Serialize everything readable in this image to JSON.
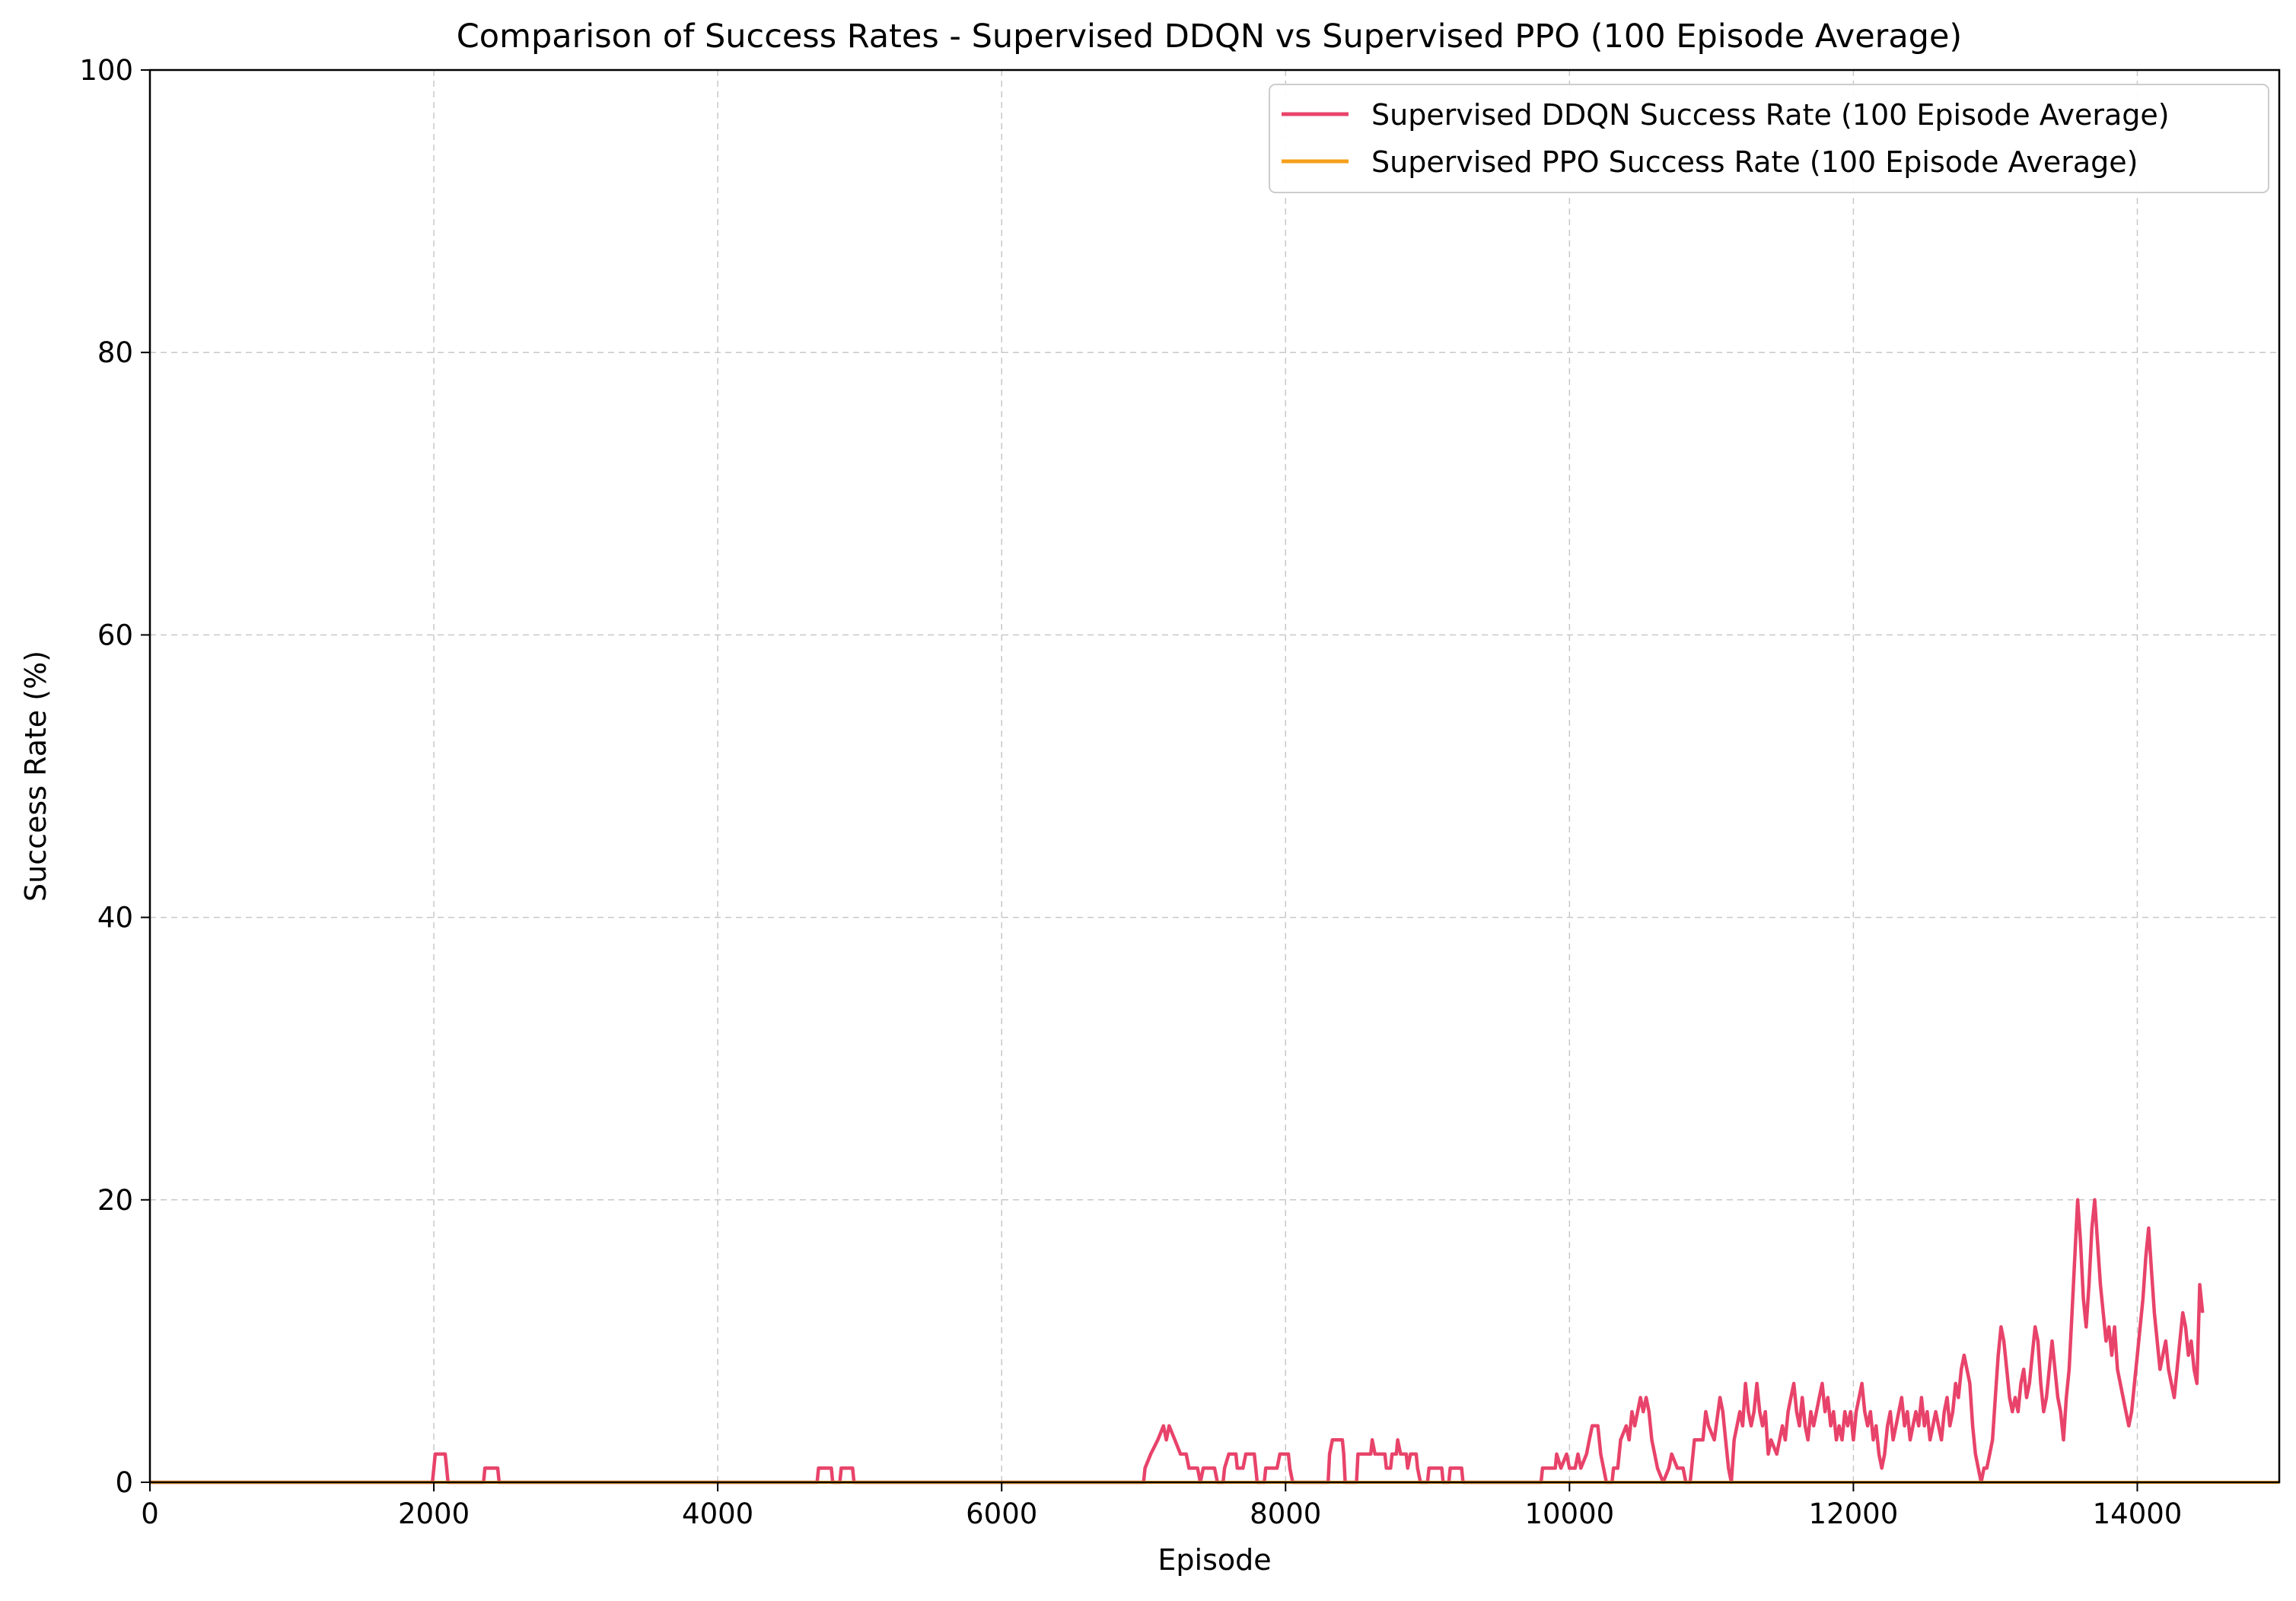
{
  "chart_data": {
    "type": "line",
    "title": "Comparison of Success Rates - Supervised DDQN vs Supervised PPO (100 Episode Average)",
    "xlabel": "Episode",
    "ylabel": "Success Rate (%)",
    "xlim": [
      0,
      15000
    ],
    "ylim": [
      0,
      100
    ],
    "x_ticks": [
      0,
      2000,
      4000,
      6000,
      8000,
      10000,
      12000,
      14000
    ],
    "y_ticks": [
      0,
      20,
      40,
      60,
      80,
      100
    ],
    "grid": true,
    "legend_position": "top-right",
    "series": [
      {
        "name": "Supervised DDQN Success Rate (100 Episode Average)",
        "color": "#e8436a",
        "points": [
          [
            0,
            0
          ],
          [
            1990,
            0
          ],
          [
            2000,
            1
          ],
          [
            2010,
            2
          ],
          [
            2080,
            2
          ],
          [
            2090,
            1
          ],
          [
            2100,
            0
          ],
          [
            2350,
            0
          ],
          [
            2360,
            1
          ],
          [
            2450,
            1
          ],
          [
            2460,
            0
          ],
          [
            4700,
            0
          ],
          [
            4710,
            1
          ],
          [
            4800,
            1
          ],
          [
            4810,
            0
          ],
          [
            4860,
            0
          ],
          [
            4870,
            1
          ],
          [
            4950,
            1
          ],
          [
            4960,
            0
          ],
          [
            7000,
            0
          ],
          [
            7010,
            1
          ],
          [
            7050,
            2
          ],
          [
            7100,
            3
          ],
          [
            7140,
            4
          ],
          [
            7160,
            3
          ],
          [
            7180,
            4
          ],
          [
            7220,
            3
          ],
          [
            7260,
            2
          ],
          [
            7300,
            2
          ],
          [
            7320,
            1
          ],
          [
            7380,
            1
          ],
          [
            7400,
            0
          ],
          [
            7420,
            1
          ],
          [
            7500,
            1
          ],
          [
            7520,
            0
          ],
          [
            7560,
            0
          ],
          [
            7570,
            1
          ],
          [
            7600,
            2
          ],
          [
            7650,
            2
          ],
          [
            7660,
            1
          ],
          [
            7700,
            1
          ],
          [
            7720,
            2
          ],
          [
            7780,
            2
          ],
          [
            7790,
            1
          ],
          [
            7800,
            0
          ],
          [
            7850,
            0
          ],
          [
            7860,
            1
          ],
          [
            7940,
            1
          ],
          [
            7960,
            2
          ],
          [
            8020,
            2
          ],
          [
            8030,
            1
          ],
          [
            8050,
            0
          ],
          [
            8300,
            0
          ],
          [
            8310,
            2
          ],
          [
            8330,
            3
          ],
          [
            8400,
            3
          ],
          [
            8410,
            2
          ],
          [
            8420,
            0
          ],
          [
            8500,
            0
          ],
          [
            8510,
            2
          ],
          [
            8600,
            2
          ],
          [
            8610,
            3
          ],
          [
            8630,
            2
          ],
          [
            8700,
            2
          ],
          [
            8710,
            1
          ],
          [
            8740,
            1
          ],
          [
            8750,
            2
          ],
          [
            8780,
            2
          ],
          [
            8790,
            3
          ],
          [
            8810,
            2
          ],
          [
            8850,
            2
          ],
          [
            8860,
            1
          ],
          [
            8880,
            2
          ],
          [
            8920,
            2
          ],
          [
            8930,
            1
          ],
          [
            8950,
            0
          ],
          [
            9000,
            0
          ],
          [
            9010,
            1
          ],
          [
            9100,
            1
          ],
          [
            9110,
            0
          ],
          [
            9150,
            0
          ],
          [
            9160,
            1
          ],
          [
            9240,
            1
          ],
          [
            9250,
            0
          ],
          [
            9800,
            0
          ],
          [
            9810,
            1
          ],
          [
            9900,
            1
          ],
          [
            9910,
            2
          ],
          [
            9940,
            1
          ],
          [
            9980,
            2
          ],
          [
            10000,
            1
          ],
          [
            10040,
            1
          ],
          [
            10060,
            2
          ],
          [
            10080,
            1
          ],
          [
            10120,
            2
          ],
          [
            10140,
            3
          ],
          [
            10160,
            4
          ],
          [
            10200,
            4
          ],
          [
            10220,
            2
          ],
          [
            10240,
            1
          ],
          [
            10260,
            0
          ],
          [
            10300,
            0
          ],
          [
            10310,
            1
          ],
          [
            10340,
            1
          ],
          [
            10360,
            3
          ],
          [
            10400,
            4
          ],
          [
            10420,
            3
          ],
          [
            10440,
            5
          ],
          [
            10460,
            4
          ],
          [
            10480,
            5
          ],
          [
            10500,
            6
          ],
          [
            10520,
            5
          ],
          [
            10540,
            6
          ],
          [
            10560,
            5
          ],
          [
            10580,
            3
          ],
          [
            10600,
            2
          ],
          [
            10620,
            1
          ],
          [
            10660,
            0
          ],
          [
            10700,
            1
          ],
          [
            10720,
            2
          ],
          [
            10760,
            1
          ],
          [
            10800,
            1
          ],
          [
            10820,
            0
          ],
          [
            10850,
            0
          ],
          [
            10860,
            1
          ],
          [
            10880,
            3
          ],
          [
            10940,
            3
          ],
          [
            10960,
            5
          ],
          [
            10980,
            4
          ],
          [
            11020,
            3
          ],
          [
            11060,
            6
          ],
          [
            11080,
            5
          ],
          [
            11100,
            3
          ],
          [
            11120,
            1
          ],
          [
            11140,
            0
          ],
          [
            11160,
            3
          ],
          [
            11200,
            5
          ],
          [
            11220,
            4
          ],
          [
            11240,
            7
          ],
          [
            11260,
            5
          ],
          [
            11280,
            4
          ],
          [
            11300,
            5
          ],
          [
            11320,
            7
          ],
          [
            11340,
            5
          ],
          [
            11360,
            4
          ],
          [
            11380,
            5
          ],
          [
            11400,
            2
          ],
          [
            11420,
            3
          ],
          [
            11460,
            2
          ],
          [
            11480,
            3
          ],
          [
            11500,
            4
          ],
          [
            11520,
            3
          ],
          [
            11540,
            5
          ],
          [
            11560,
            6
          ],
          [
            11580,
            7
          ],
          [
            11600,
            5
          ],
          [
            11620,
            4
          ],
          [
            11640,
            6
          ],
          [
            11660,
            4
          ],
          [
            11680,
            3
          ],
          [
            11700,
            5
          ],
          [
            11720,
            4
          ],
          [
            11740,
            5
          ],
          [
            11760,
            6
          ],
          [
            11780,
            7
          ],
          [
            11800,
            5
          ],
          [
            11820,
            6
          ],
          [
            11840,
            4
          ],
          [
            11860,
            5
          ],
          [
            11880,
            3
          ],
          [
            11900,
            4
          ],
          [
            11920,
            3
          ],
          [
            11940,
            5
          ],
          [
            11960,
            4
          ],
          [
            11980,
            5
          ],
          [
            12000,
            3
          ],
          [
            12020,
            5
          ],
          [
            12040,
            6
          ],
          [
            12060,
            7
          ],
          [
            12080,
            5
          ],
          [
            12100,
            4
          ],
          [
            12120,
            5
          ],
          [
            12140,
            3
          ],
          [
            12160,
            4
          ],
          [
            12180,
            2
          ],
          [
            12200,
            1
          ],
          [
            12220,
            2
          ],
          [
            12240,
            4
          ],
          [
            12260,
            5
          ],
          [
            12280,
            3
          ],
          [
            12300,
            4
          ],
          [
            12320,
            5
          ],
          [
            12340,
            6
          ],
          [
            12360,
            4
          ],
          [
            12380,
            5
          ],
          [
            12400,
            3
          ],
          [
            12420,
            4
          ],
          [
            12440,
            5
          ],
          [
            12460,
            4
          ],
          [
            12480,
            6
          ],
          [
            12500,
            4
          ],
          [
            12520,
            5
          ],
          [
            12540,
            3
          ],
          [
            12560,
            4
          ],
          [
            12580,
            5
          ],
          [
            12600,
            4
          ],
          [
            12620,
            3
          ],
          [
            12640,
            5
          ],
          [
            12660,
            6
          ],
          [
            12680,
            4
          ],
          [
            12700,
            5
          ],
          [
            12720,
            7
          ],
          [
            12740,
            6
          ],
          [
            12760,
            8
          ],
          [
            12780,
            9
          ],
          [
            12800,
            8
          ],
          [
            12820,
            7
          ],
          [
            12840,
            4
          ],
          [
            12860,
            2
          ],
          [
            12880,
            1
          ],
          [
            12900,
            0
          ],
          [
            12920,
            1
          ],
          [
            12940,
            1
          ],
          [
            12960,
            2
          ],
          [
            12980,
            3
          ],
          [
            13000,
            6
          ],
          [
            13020,
            9
          ],
          [
            13040,
            11
          ],
          [
            13060,
            10
          ],
          [
            13080,
            8
          ],
          [
            13100,
            6
          ],
          [
            13120,
            5
          ],
          [
            13140,
            6
          ],
          [
            13160,
            5
          ],
          [
            13180,
            7
          ],
          [
            13200,
            8
          ],
          [
            13220,
            6
          ],
          [
            13240,
            7
          ],
          [
            13260,
            9
          ],
          [
            13280,
            11
          ],
          [
            13300,
            10
          ],
          [
            13320,
            7
          ],
          [
            13340,
            5
          ],
          [
            13360,
            6
          ],
          [
            13380,
            8
          ],
          [
            13400,
            10
          ],
          [
            13420,
            8
          ],
          [
            13440,
            6
          ],
          [
            13460,
            5
          ],
          [
            13480,
            3
          ],
          [
            13500,
            6
          ],
          [
            13520,
            8
          ],
          [
            13540,
            12
          ],
          [
            13560,
            16
          ],
          [
            13580,
            20
          ],
          [
            13600,
            17
          ],
          [
            13620,
            13
          ],
          [
            13640,
            11
          ],
          [
            13660,
            14
          ],
          [
            13680,
            18
          ],
          [
            13700,
            20
          ],
          [
            13720,
            17
          ],
          [
            13740,
            14
          ],
          [
            13760,
            12
          ],
          [
            13780,
            10
          ],
          [
            13800,
            11
          ],
          [
            13820,
            9
          ],
          [
            13840,
            11
          ],
          [
            13860,
            8
          ],
          [
            13880,
            7
          ],
          [
            13900,
            6
          ],
          [
            13920,
            5
          ],
          [
            13940,
            4
          ],
          [
            13960,
            5
          ],
          [
            13980,
            7
          ],
          [
            14000,
            9
          ],
          [
            14020,
            11
          ],
          [
            14040,
            13
          ],
          [
            14060,
            16
          ],
          [
            14080,
            18
          ],
          [
            14100,
            15
          ],
          [
            14120,
            12
          ],
          [
            14140,
            10
          ],
          [
            14160,
            8
          ],
          [
            14180,
            9
          ],
          [
            14200,
            10
          ],
          [
            14220,
            8
          ],
          [
            14240,
            7
          ],
          [
            14260,
            6
          ],
          [
            14280,
            8
          ],
          [
            14300,
            10
          ],
          [
            14320,
            12
          ],
          [
            14340,
            11
          ],
          [
            14360,
            9
          ],
          [
            14380,
            10
          ],
          [
            14400,
            8
          ],
          [
            14420,
            7
          ],
          [
            14440,
            14
          ],
          [
            14460,
            12
          ]
        ]
      },
      {
        "name": "Supervised PPO Success Rate (100 Episode Average)",
        "color": "#f5a01a",
        "points": [
          [
            0,
            0
          ],
          [
            15000,
            0
          ]
        ]
      }
    ]
  }
}
